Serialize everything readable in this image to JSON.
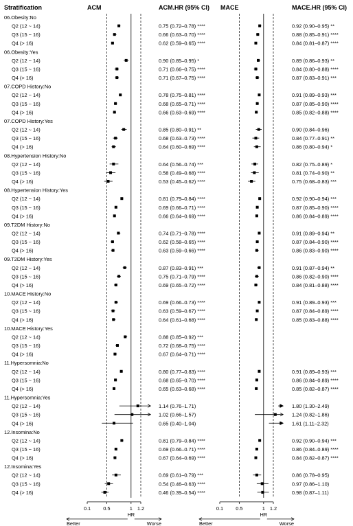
{
  "chart_data": {
    "type": "forest",
    "headers": {
      "stratification": "Stratification",
      "panel1": "ACM",
      "panel1_text": "ACM.HR (95% CI)",
      "panel2": "MACE",
      "panel2_text": "MACE.HR (95% CI)"
    },
    "axis": {
      "xlabel": "HR",
      "ticks": [
        "0.1",
        "0.5",
        "1",
        "1.2"
      ],
      "tick_values": [
        0.1,
        0.5,
        1.0,
        1.2
      ],
      "xlim": [
        0.1,
        1.4
      ],
      "reference_line": 1.0,
      "dashed_lines": [
        0.5,
        1.2
      ],
      "left_label": "Better",
      "right_label": "Worse"
    },
    "groups": [
      {
        "title": "06.Obesity:No",
        "rows": [
          {
            "label": "Q2 (12 ~ 14)",
            "acm": [
              0.75,
              0.72,
              0.78
            ],
            "acm_text": "0.75 (0.72–0.78) ****",
            "mace": [
              0.92,
              0.9,
              0.95
            ],
            "mace_text": "0.92 (0.90–0.95) **"
          },
          {
            "label": "Q3 (15 ~ 16)",
            "acm": [
              0.66,
              0.63,
              0.7
            ],
            "acm_text": "0.66 (0.63–0.70) ****",
            "mace": [
              0.88,
              0.85,
              0.91
            ],
            "mace_text": "0.88 (0.85–0.91) ****"
          },
          {
            "label": "Q4 (> 16)",
            "acm": [
              0.62,
              0.59,
              0.65
            ],
            "acm_text": "0.62 (0.59–0.65) ****",
            "mace": [
              0.84,
              0.81,
              0.87
            ],
            "mace_text": "0.84 (0.81–0.87) ****"
          }
        ]
      },
      {
        "title": "06.Obesity:Yes",
        "rows": [
          {
            "label": "Q2 (12 ~ 14)",
            "acm": [
              0.9,
              0.85,
              0.95
            ],
            "acm_text": "0.90 (0.85–0.95) *",
            "mace": [
              0.89,
              0.86,
              0.93
            ],
            "mace_text": "0.89 (0.86–0.93) **"
          },
          {
            "label": "Q3 (15 ~ 16)",
            "acm": [
              0.71,
              0.66,
              0.75
            ],
            "acm_text": "0.71 (0.66–0.75) ****",
            "mace": [
              0.84,
              0.8,
              0.88
            ],
            "mace_text": "0.84 (0.80–0.88) ****"
          },
          {
            "label": "Q4 (> 16)",
            "acm": [
              0.71,
              0.67,
              0.75
            ],
            "acm_text": "0.71 (0.67–0.75) ****",
            "mace": [
              0.87,
              0.83,
              0.91
            ],
            "mace_text": "0.87 (0.83–0.91) ***"
          }
        ]
      },
      {
        "title": "07.COPD History:No",
        "rows": [
          {
            "label": "Q2 (12 ~ 14)",
            "acm": [
              0.78,
              0.75,
              0.81
            ],
            "acm_text": "0.78 (0.75–0.81) ****",
            "mace": [
              0.91,
              0.89,
              0.93
            ],
            "mace_text": "0.91 (0.89–0.93) ***"
          },
          {
            "label": "Q3 (15 ~ 16)",
            "acm": [
              0.68,
              0.65,
              0.71
            ],
            "acm_text": "0.68 (0.65–0.71) ****",
            "mace": [
              0.87,
              0.85,
              0.9
            ],
            "mace_text": "0.87 (0.85–0.90) ****"
          },
          {
            "label": "Q4 (> 16)",
            "acm": [
              0.66,
              0.63,
              0.69
            ],
            "acm_text": "0.66 (0.63–0.69) ****",
            "mace": [
              0.85,
              0.82,
              0.88
            ],
            "mace_text": "0.85 (0.82–0.88) ****"
          }
        ]
      },
      {
        "title": "07.COPD History:Yes",
        "rows": [
          {
            "label": "Q2 (12 ~ 14)",
            "acm": [
              0.85,
              0.8,
              0.91
            ],
            "acm_text": "0.85 (0.80–0.91) **",
            "mace": [
              0.9,
              0.84,
              0.96
            ],
            "mace_text": "0.90 (0.84–0.96)"
          },
          {
            "label": "Q3 (15 ~ 16)",
            "acm": [
              0.68,
              0.63,
              0.73
            ],
            "acm_text": "0.68 (0.63–0.73) ****",
            "mace": [
              0.84,
              0.77,
              0.91
            ],
            "mace_text": "0.84 (0.77–0.91) **"
          },
          {
            "label": "Q4 (> 16)",
            "acm": [
              0.64,
              0.6,
              0.69
            ],
            "acm_text": "0.64 (0.60–0.69) ****",
            "mace": [
              0.86,
              0.8,
              0.94
            ],
            "mace_text": "0.86 (0.80–0.94) *"
          }
        ]
      },
      {
        "title": "08.Hypertension History:No",
        "rows": [
          {
            "label": "Q2 (12 ~ 14)",
            "acm": [
              0.64,
              0.56,
              0.74
            ],
            "acm_text": "0.64 (0.56–0.74) ***",
            "mace": [
              0.82,
              0.75,
              0.89
            ],
            "mace_text": "0.82 (0.75–0.89) *"
          },
          {
            "label": "Q3 (15 ~ 16)",
            "acm": [
              0.58,
              0.49,
              0.68
            ],
            "acm_text": "0.58 (0.49–0.68) ****",
            "mace": [
              0.81,
              0.74,
              0.9
            ],
            "mace_text": "0.81 (0.74–0.90) **"
          },
          {
            "label": "Q4 (> 16)",
            "acm": [
              0.53,
              0.45,
              0.62
            ],
            "acm_text": "0.53 (0.45–0.62) ****",
            "mace": [
              0.75,
              0.68,
              0.83
            ],
            "mace_text": "0.75 (0.68–0.83) ***"
          }
        ]
      },
      {
        "title": "08.Hypertension History:Yes",
        "rows": [
          {
            "label": "Q2 (12 ~ 14)",
            "acm": [
              0.81,
              0.79,
              0.84
            ],
            "acm_text": "0.81 (0.79–0.84) ****",
            "mace": [
              0.92,
              0.9,
              0.94
            ],
            "mace_text": "0.92 (0.90–0.94) ***"
          },
          {
            "label": "Q3 (15 ~ 16)",
            "acm": [
              0.69,
              0.66,
              0.71
            ],
            "acm_text": "0.69 (0.66–0.71) ****",
            "mace": [
              0.87,
              0.85,
              0.9
            ],
            "mace_text": "0.87 (0.85–0.90) ****"
          },
          {
            "label": "Q4 (> 16)",
            "acm": [
              0.66,
              0.64,
              0.69
            ],
            "acm_text": "0.66 (0.64–0.69) ****",
            "mace": [
              0.86,
              0.84,
              0.89
            ],
            "mace_text": "0.86 (0.84–0.89) ****"
          }
        ]
      },
      {
        "title": "09.T2DM History:No",
        "rows": [
          {
            "label": "Q2 (12 ~ 14)",
            "acm": [
              0.74,
              0.71,
              0.78
            ],
            "acm_text": "0.74 (0.71–0.78) ****",
            "mace": [
              0.91,
              0.89,
              0.94
            ],
            "mace_text": "0.91 (0.89–0.94) **"
          },
          {
            "label": "Q3 (15 ~ 16)",
            "acm": [
              0.62,
              0.58,
              0.65
            ],
            "acm_text": "0.62 (0.58–0.65) ****",
            "mace": [
              0.87,
              0.84,
              0.9
            ],
            "mace_text": "0.87 (0.84–0.90) ****"
          },
          {
            "label": "Q4 (> 16)",
            "acm": [
              0.63,
              0.59,
              0.66
            ],
            "acm_text": "0.63 (0.59–0.66) ****",
            "mace": [
              0.86,
              0.83,
              0.9
            ],
            "mace_text": "0.86 (0.83–0.90) ****"
          }
        ]
      },
      {
        "title": "09.T2DM History:Yes",
        "rows": [
          {
            "label": "Q2 (12 ~ 14)",
            "acm": [
              0.87,
              0.83,
              0.91
            ],
            "acm_text": "0.87 (0.83–0.91) ***",
            "mace": [
              0.91,
              0.87,
              0.94
            ],
            "mace_text": "0.91 (0.87–0.94) **"
          },
          {
            "label": "Q3 (15 ~ 16)",
            "acm": [
              0.75,
              0.71,
              0.79
            ],
            "acm_text": "0.75 (0.71–0.79) ****",
            "mace": [
              0.86,
              0.82,
              0.9
            ],
            "mace_text": "0.86 (0.82–0.90) ****"
          },
          {
            "label": "Q4 (> 16)",
            "acm": [
              0.69,
              0.65,
              0.72
            ],
            "acm_text": "0.69 (0.65–0.72) ****",
            "mace": [
              0.84,
              0.81,
              0.88
            ],
            "mace_text": "0.84 (0.81–0.88) ****"
          }
        ]
      },
      {
        "title": "10.MACE History:No",
        "rows": [
          {
            "label": "Q2 (12 ~ 14)",
            "acm": [
              0.69,
              0.66,
              0.73
            ],
            "acm_text": "0.69 (0.66–0.73) ****",
            "mace": [
              0.91,
              0.89,
              0.93
            ],
            "mace_text": "0.91 (0.89–0.93) ***"
          },
          {
            "label": "Q3 (15 ~ 16)",
            "acm": [
              0.63,
              0.59,
              0.67
            ],
            "acm_text": "0.63 (0.59–0.67) ****",
            "mace": [
              0.87,
              0.84,
              0.89
            ],
            "mace_text": "0.87 (0.84–0.89) ****"
          },
          {
            "label": "Q4 (> 16)",
            "acm": [
              0.64,
              0.61,
              0.68
            ],
            "acm_text": "0.64 (0.61–0.68) ****",
            "mace": [
              0.85,
              0.83,
              0.88
            ],
            "mace_text": "0.85 (0.83–0.88) ****"
          }
        ]
      },
      {
        "title": "10.MACE History:Yes",
        "rows": [
          {
            "label": "Q2 (12 ~ 14)",
            "acm": [
              0.88,
              0.85,
              0.92
            ],
            "acm_text": "0.88 (0.85–0.92) ***",
            "mace": null,
            "mace_text": ""
          },
          {
            "label": "Q3 (15 ~ 16)",
            "acm": [
              0.72,
              0.68,
              0.75
            ],
            "acm_text": "0.72 (0.68–0.75) ****",
            "mace": null,
            "mace_text": ""
          },
          {
            "label": "Q4 (> 16)",
            "acm": [
              0.67,
              0.64,
              0.71
            ],
            "acm_text": "0.67 (0.64–0.71) ****",
            "mace": null,
            "mace_text": ""
          }
        ]
      },
      {
        "title": "11.Hypersomnia:No",
        "rows": [
          {
            "label": "Q2 (12 ~ 14)",
            "acm": [
              0.8,
              0.77,
              0.83
            ],
            "acm_text": "0.80 (0.77–0.83) ****",
            "mace": [
              0.91,
              0.89,
              0.93
            ],
            "mace_text": "0.91 (0.89–0.93) ***"
          },
          {
            "label": "Q3 (15 ~ 16)",
            "acm": [
              0.68,
              0.65,
              0.7
            ],
            "acm_text": "0.68 (0.65–0.70) ****",
            "mace": [
              0.86,
              0.84,
              0.89
            ],
            "mace_text": "0.86 (0.84–0.89) ****"
          },
          {
            "label": "Q4 (> 16)",
            "acm": [
              0.65,
              0.63,
              0.68
            ],
            "acm_text": "0.65 (0.63–0.68) ****",
            "mace": [
              0.85,
              0.82,
              0.87
            ],
            "mace_text": "0.85 (0.82–0.87) ****"
          }
        ]
      },
      {
        "title": "11.Hypersomnia:Yes",
        "rows": [
          {
            "label": "Q2 (12 ~ 14)",
            "acm": [
              1.14,
              0.76,
              1.71
            ],
            "acm_text": "1.14 (0.76–1.71)",
            "mace": [
              1.8,
              1.3,
              2.49
            ],
            "mace_text": "1.80 (1.30–2.49)"
          },
          {
            "label": "Q3 (15 ~ 16)",
            "acm": [
              1.02,
              0.66,
              1.57
            ],
            "acm_text": "1.02 (0.66–1.57)",
            "mace": [
              1.24,
              0.82,
              1.86
            ],
            "mace_text": "1.24 (0.82–1.86)"
          },
          {
            "label": "Q4 (> 16)",
            "acm": [
              0.65,
              0.4,
              1.04
            ],
            "acm_text": "0.65 (0.40–1.04)",
            "mace": [
              1.61,
              1.11,
              2.32
            ],
            "mace_text": "1.61 (1.11–2.32)"
          }
        ]
      },
      {
        "title": "12.Insomina:No",
        "rows": [
          {
            "label": "Q2 (12 ~ 14)",
            "acm": [
              0.81,
              0.79,
              0.84
            ],
            "acm_text": "0.81 (0.79–0.84) ****",
            "mace": [
              0.92,
              0.9,
              0.94
            ],
            "mace_text": "0.92 (0.90–0.94) ***"
          },
          {
            "label": "Q3 (15 ~ 16)",
            "acm": [
              0.69,
              0.66,
              0.71
            ],
            "acm_text": "0.69 (0.66–0.71) ****",
            "mace": [
              0.86,
              0.84,
              0.89
            ],
            "mace_text": "0.86 (0.84–0.89) ****"
          },
          {
            "label": "Q4 (> 16)",
            "acm": [
              0.67,
              0.64,
              0.69
            ],
            "acm_text": "0.67 (0.64–0.69) ****",
            "mace": [
              0.84,
              0.82,
              0.87
            ],
            "mace_text": "0.84 (0.82–0.87) ****"
          }
        ]
      },
      {
        "title": "12.Insomina:Yes",
        "rows": [
          {
            "label": "Q2 (12 ~ 14)",
            "acm": [
              0.69,
              0.61,
              0.79
            ],
            "acm_text": "0.69 (0.61–0.79) ***",
            "mace": [
              0.86,
              0.78,
              0.95
            ],
            "mace_text": "0.86 (0.78–0.95)"
          },
          {
            "label": "Q3 (15 ~ 16)",
            "acm": [
              0.54,
              0.46,
              0.63
            ],
            "acm_text": "0.54 (0.46–0.63) ****",
            "mace": [
              0.97,
              0.86,
              1.1
            ],
            "mace_text": "0.97 (0.86–1.10)"
          },
          {
            "label": "Q4 (> 16)",
            "acm": [
              0.46,
              0.39,
              0.54
            ],
            "acm_text": "0.46 (0.39–0.54) ****",
            "mace": [
              0.98,
              0.87,
              1.11
            ],
            "mace_text": "0.98 (0.87–1.11)"
          }
        ]
      }
    ]
  }
}
